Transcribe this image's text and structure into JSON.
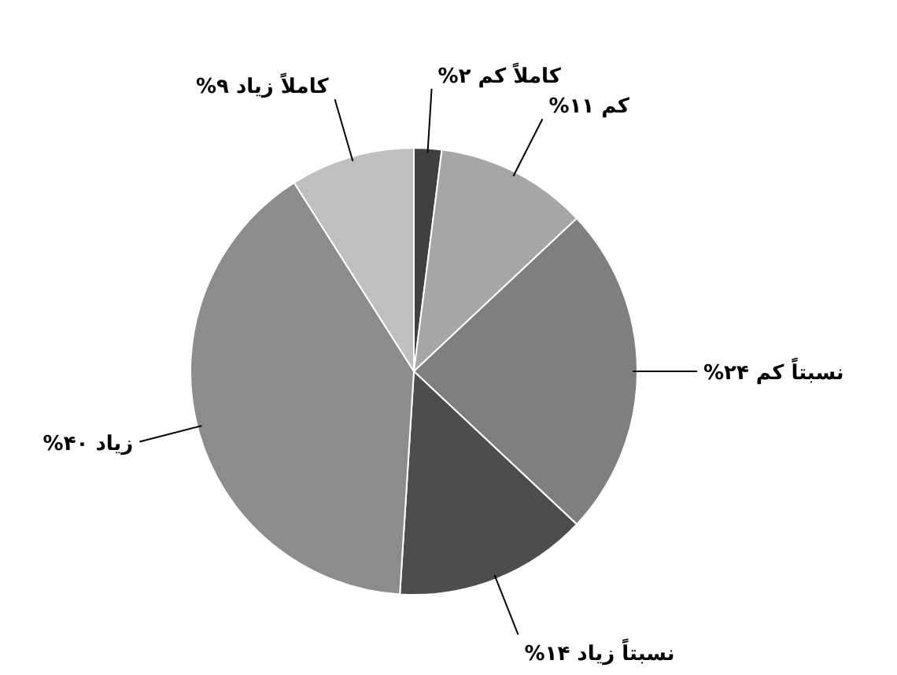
{
  "chart_data": {
    "type": "pie",
    "categories": [
      "کاملاً کم",
      "کم",
      "نسبتاً کم",
      "نسبتاً زیاد",
      "زیاد",
      "کاملاً زیاد"
    ],
    "values": [
      2,
      11,
      24,
      14,
      40,
      9
    ],
    "value_labels": [
      "۲%",
      "۱۱%",
      "۲۴%",
      "۱۴%",
      "۴۰%",
      "۹%"
    ],
    "colors": [
      "#404040",
      "#a6a6a6",
      "#7f7f7f",
      "#4d4d4d",
      "#8c8c8c",
      "#bfbfbf"
    ]
  }
}
